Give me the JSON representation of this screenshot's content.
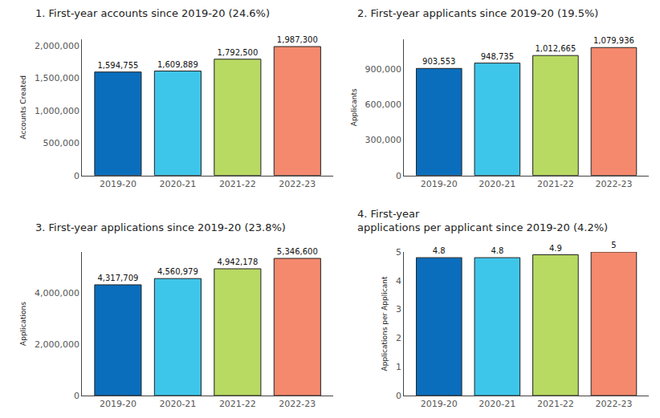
{
  "chart_data": [
    {
      "type": "bar",
      "title": "1. First-year accounts since 2019-20 (24.6%)",
      "y_label": "Accounts Created",
      "categories": [
        "2019-20",
        "2020-21",
        "2021-22",
        "2022-23"
      ],
      "values": [
        1594755,
        1609889,
        1792500,
        1987300
      ],
      "value_labels": [
        "1,594,755",
        "1,609,889",
        "1,792,500",
        "1,987,300"
      ],
      "colors": [
        "#0a6ebd",
        "#3ec6ea",
        "#b8d962",
        "#f4896d"
      ],
      "ylim": [
        0,
        2100000
      ],
      "yticks": [
        0,
        {
          "value": 500000,
          "label": "500,000"
        },
        {
          "value": 1000000,
          "label": "1,000,000"
        },
        {
          "value": 1500000,
          "label": "1,500,000"
        },
        {
          "value": 2000000,
          "label": "2,000,000"
        }
      ],
      "grid": false,
      "data_labels": true
    },
    {
      "type": "bar",
      "title": "2. First-year applicants since 2019-20 (19.5%)",
      "y_label": "Applicants",
      "categories": [
        "2019-20",
        "2020-21",
        "2021-22",
        "2022-23"
      ],
      "values": [
        903553,
        948735,
        1012665,
        1079936
      ],
      "value_labels": [
        "903,553",
        "948,735",
        "1,012,665",
        "1,079,936"
      ],
      "colors": [
        "#0a6ebd",
        "#3ec6ea",
        "#b8d962",
        "#f4896d"
      ],
      "ylim": [
        0,
        1150000
      ],
      "yticks": [
        0,
        {
          "value": 300000,
          "label": "300,000"
        },
        {
          "value": 600000,
          "label": "600,000"
        },
        {
          "value": 900000,
          "label": "900,000"
        }
      ],
      "grid": false,
      "data_labels": true
    },
    {
      "type": "bar",
      "title": "3. First-year applications since 2019-20 (23.8%)",
      "y_label": "Applications",
      "categories": [
        "2019-20",
        "2020-21",
        "2021-22",
        "2022-23"
      ],
      "values": [
        4317709,
        4560979,
        4942178,
        5346600
      ],
      "value_labels": [
        "4,317,709",
        "4,560,979",
        "4,942,178",
        "5,346,600"
      ],
      "colors": [
        "#0a6ebd",
        "#3ec6ea",
        "#b8d962",
        "#f4896d"
      ],
      "ylim": [
        0,
        5600000
      ],
      "yticks": [
        0,
        {
          "value": 2000000,
          "label": "2,000,000"
        },
        {
          "value": 4000000,
          "label": "4,000,000"
        }
      ],
      "grid": false,
      "data_labels": true
    },
    {
      "type": "bar",
      "title": "4. First-year\napplications per applicant since 2019-20 (4.2%)",
      "y_label": "Applications per Applicant",
      "categories": [
        "2019-20",
        "2020-21",
        "2021-22",
        "2022-23"
      ],
      "values": [
        4.8,
        4.8,
        4.9,
        5
      ],
      "colors": [
        "#0a6ebd",
        "#3ec6ea",
        "#b8d962",
        "#f4896d"
      ],
      "ylim": [
        0,
        5
      ],
      "yticks": [
        0,
        1,
        2,
        3,
        4,
        5
      ],
      "grid": false,
      "data_labels": true
    }
  ]
}
